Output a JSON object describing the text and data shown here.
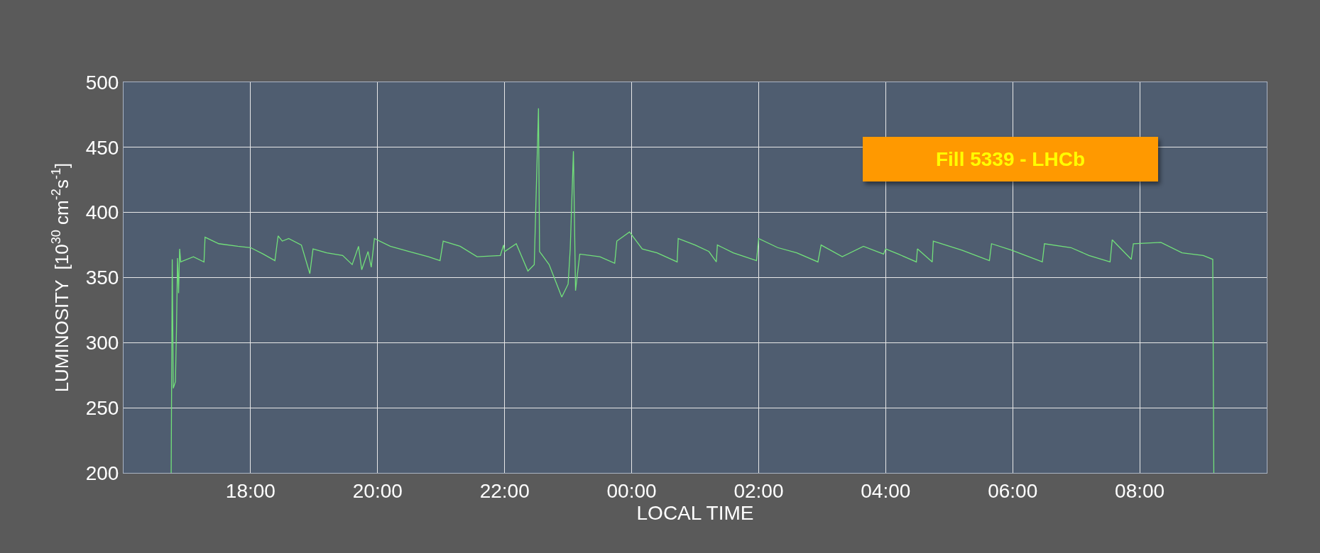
{
  "chart_data": {
    "type": "line",
    "xlabel": "LOCAL TIME",
    "ylabel": "LUMINOSITY  [10$^{30}$ cm$^{-2}$s$^{-1}$]",
    "annotations": [
      "Fill 5339 - LHCb"
    ],
    "xlim": [
      "--01-01T16:00",
      "--01-02T10:00"
    ],
    "xticks": [
      {
        "value": "--01-01T18:00",
        "label": "18:00"
      },
      {
        "value": "--01-01T20:00",
        "label": "20:00"
      },
      {
        "value": "--01-01T22:00",
        "label": "22:00"
      },
      {
        "value": "--01-02T00:00",
        "label": "00:00"
      },
      {
        "value": "--01-02T02:00",
        "label": "02:00"
      },
      {
        "value": "--01-02T04:00",
        "label": "04:00"
      },
      {
        "value": "--01-02T06:00",
        "label": "06:00"
      },
      {
        "value": "--01-02T08:00",
        "label": "08:00"
      }
    ],
    "ylim": [
      200,
      500
    ],
    "yticks": [
      200,
      250,
      300,
      350,
      400,
      450,
      500
    ],
    "grid": true,
    "series": [
      {
        "color": "#72e07a",
        "x": [
          "--01-01T16:45",
          "--01-01T16:46",
          "--01-01T16:47",
          "--01-01T16:49",
          "--01-01T16:50",
          "--01-01T16:51",
          "--01-01T16:52",
          "--01-01T16:53",
          "--01-01T16:54",
          "--01-01T17:06",
          "--01-01T17:16",
          "--01-01T17:17",
          "--01-01T17:30",
          "--01-01T17:48",
          "--01-01T18:00",
          "--01-01T18:12",
          "--01-01T18:23",
          "--01-01T18:26",
          "--01-01T18:30",
          "--01-01T18:36",
          "--01-01T18:48",
          "--01-01T18:56",
          "--01-01T18:59",
          "--01-01T19:12",
          "--01-01T19:27",
          "--01-01T19:36",
          "--01-01T19:42",
          "--01-01T19:45",
          "--01-01T19:51",
          "--01-01T19:54",
          "--01-01T19:57",
          "--01-01T20:12",
          "--01-01T20:30",
          "--01-01T20:48",
          "--01-01T20:59",
          "--01-01T21:02",
          "--01-01T21:18",
          "--01-01T21:34",
          "--01-01T21:56",
          "--01-01T21:59",
          "--01-01T22:00",
          "--01-01T22:11",
          "--01-01T22:22",
          "--01-01T22:28",
          "--01-01T22:32",
          "--01-01T22:33",
          "--01-01T22:42",
          "--01-01T22:54",
          "--01-01T23:00",
          "--01-01T23:02",
          "--01-01T23:05",
          "--01-01T23:07",
          "--01-01T23:11",
          "--01-01T23:30",
          "--01-01T23:44",
          "--01-01T23:46",
          "--01-01T23:58",
          "--01-02T00:10",
          "--01-02T00:24",
          "--01-02T00:43",
          "--01-02T00:44",
          "--01-02T01:00",
          "--01-02T01:13",
          "--01-02T01:20",
          "--01-02T01:21",
          "--01-02T01:36",
          "--01-02T01:58",
          "--01-02T02:00",
          "--01-02T02:18",
          "--01-02T02:36",
          "--01-02T02:56",
          "--01-02T02:59",
          "--01-02T03:19",
          "--01-02T03:39",
          "--01-02T03:58",
          "--01-02T04:00",
          "--01-02T04:12",
          "--01-02T04:29",
          "--01-02T04:30",
          "--01-02T04:44",
          "--01-02T04:45",
          "--01-02T05:12",
          "--01-02T05:38",
          "--01-02T05:40",
          "--01-02T05:59",
          "--01-02T06:28",
          "--01-02T06:30",
          "--01-02T06:55",
          "--01-02T07:12",
          "--01-02T07:32",
          "--01-02T07:34",
          "--01-02T07:52",
          "--01-02T07:54",
          "--01-02T08:20",
          "--01-02T08:40",
          "--01-02T09:00",
          "--01-02T09:09",
          "--01-02T09:10"
        ],
        "values": [
          200,
          364,
          265,
          270,
          310,
          365,
          338,
          372,
          362,
          366,
          362,
          381,
          376,
          374,
          373,
          368,
          363,
          382,
          378,
          380,
          375,
          353,
          372,
          369,
          367,
          360,
          374,
          356,
          370,
          358,
          380,
          374,
          370,
          366,
          363,
          378,
          374,
          366,
          367,
          375,
          370,
          376,
          355,
          360,
          480,
          370,
          360,
          335,
          345,
          372,
          447,
          340,
          368,
          366,
          361,
          378,
          385,
          372,
          369,
          362,
          380,
          375,
          370,
          362,
          375,
          369,
          363,
          380,
          373,
          369,
          362,
          375,
          366,
          374,
          368,
          372,
          368,
          362,
          372,
          362,
          378,
          371,
          363,
          376,
          371,
          362,
          376,
          373,
          367,
          362,
          379,
          364,
          376,
          377,
          369,
          367,
          364,
          200
        ]
      }
    ]
  }
}
